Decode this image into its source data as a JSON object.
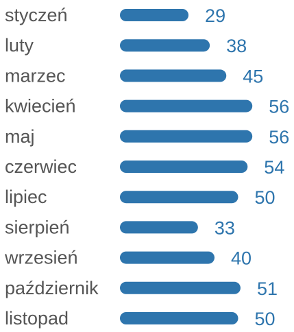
{
  "chart_data": {
    "type": "bar",
    "orientation": "horizontal",
    "categories": [
      "styczeń",
      "luty",
      "marzec",
      "kwiecień",
      "maj",
      "czerwiec",
      "lipiec",
      "sierpień",
      "wrzesień",
      "październik",
      "listopad"
    ],
    "values": [
      29,
      38,
      45,
      56,
      56,
      54,
      50,
      33,
      40,
      51,
      50
    ],
    "title": "",
    "xlabel": "",
    "ylabel": "",
    "grid": false,
    "axes_visible": false,
    "data_labels": true
  },
  "colors": {
    "bar": "#2e75ad",
    "value_text": "#2e75ad",
    "category_text": "#555555",
    "background": "#ffffff"
  }
}
